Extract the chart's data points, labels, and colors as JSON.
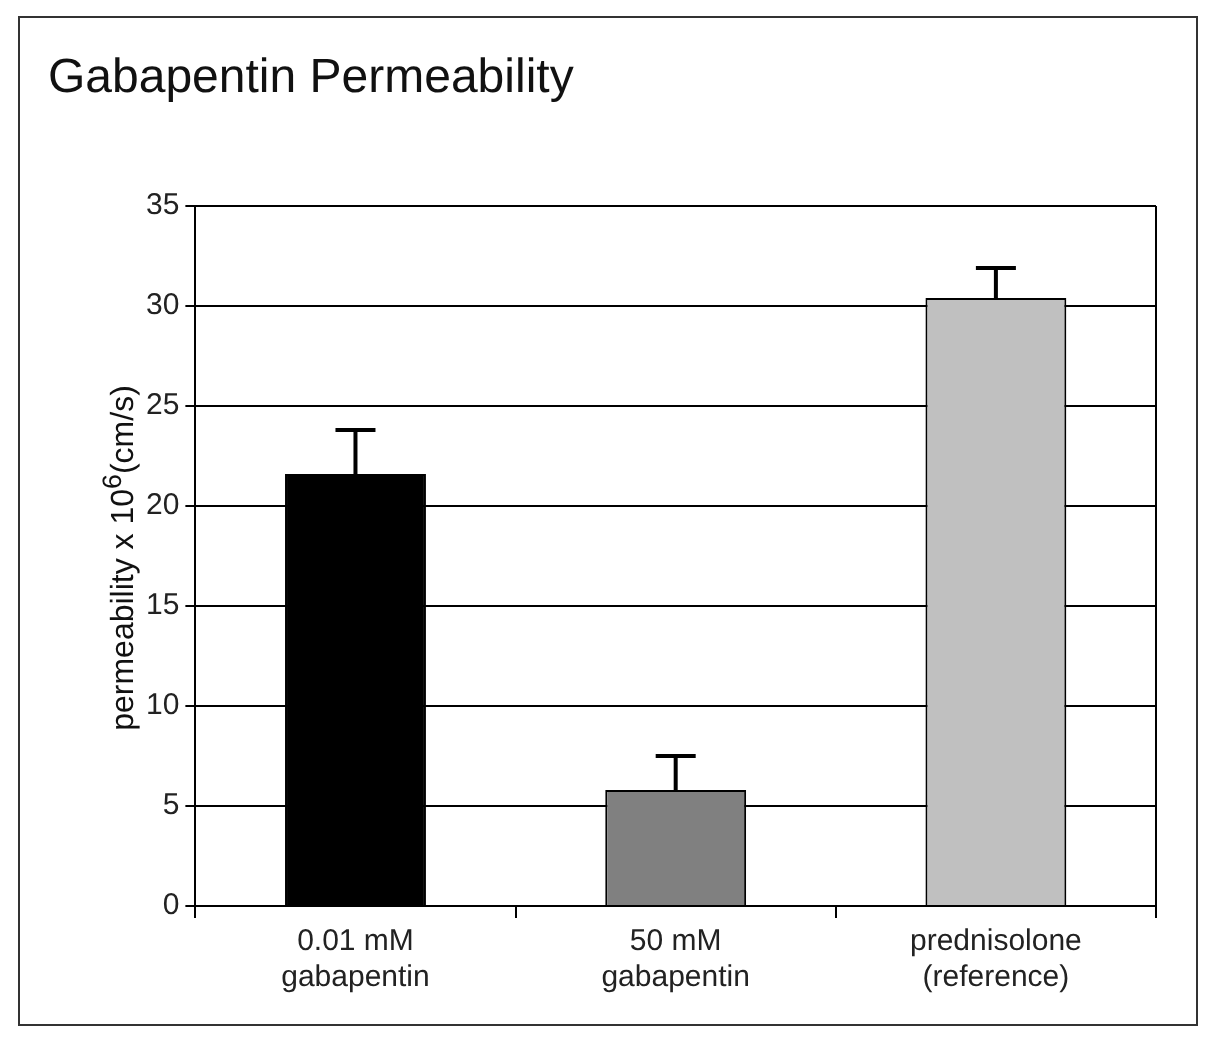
{
  "chart_data": {
    "type": "bar",
    "title": "Gabapentin Permeability",
    "ylabel": "permeability x 10$^{6}$(cm/s)",
    "categories": [
      "0.01 mM\ngabapentin",
      "50 mM\ngabapentin",
      "prednisolone\n(reference)"
    ],
    "values": [
      21.6,
      5.8,
      30.4
    ],
    "errors": [
      2.2,
      1.7,
      1.5
    ],
    "colors": [
      "#000000",
      "#808080",
      "#c0c0c0"
    ],
    "ylim": [
      0,
      35
    ],
    "yticks": [
      0,
      5,
      10,
      15,
      20,
      25,
      30,
      35
    ],
    "grid": "y",
    "legend": false
  }
}
